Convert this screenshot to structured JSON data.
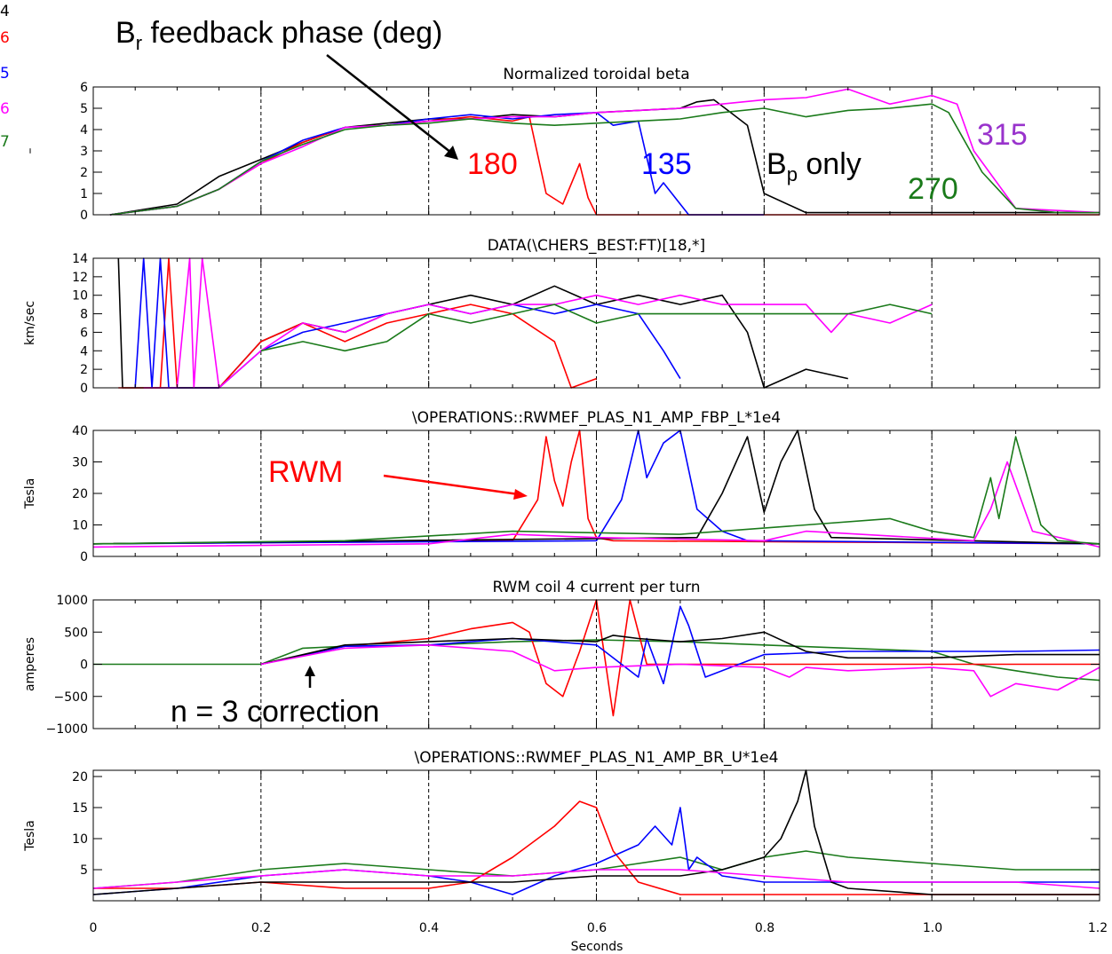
{
  "figure": {
    "x_label": "Seconds",
    "x_ticks": [
      "0",
      "0.2",
      "0.4",
      "0.6",
      "0.8",
      "1.0",
      "1.2"
    ],
    "legend_fragments": [
      "4",
      "6",
      "5",
      "6",
      "7"
    ]
  },
  "annotations": {
    "header_main": "B",
    "header_sub": "r",
    "header_rest": " feedback phase (deg)",
    "label_180": "180",
    "label_135": "135",
    "label_bp_main": "B",
    "label_bp_sub": "p",
    "label_bp_rest": " only",
    "label_270": "270",
    "label_315": "315",
    "label_rwm": "RWM",
    "label_n3": "n = 3 correction"
  },
  "colors": {
    "black": "#000000",
    "red": "#ff0000",
    "blue": "#0000ff",
    "magenta": "#ff00ff",
    "green": "#1a7a1a",
    "purple": "#9933cc"
  },
  "chart_data": [
    {
      "type": "line",
      "title": "Normalized toroidal beta",
      "ylabel": "–",
      "xlim": [
        0,
        1.2
      ],
      "ylim": [
        0,
        6
      ],
      "y_ticks": [
        "0",
        "1",
        "2",
        "3",
        "4",
        "5",
        "6"
      ],
      "series": [
        {
          "color": "black",
          "x": [
            0.02,
            0.1,
            0.15,
            0.2,
            0.25,
            0.3,
            0.35,
            0.4,
            0.45,
            0.5,
            0.55,
            0.6,
            0.65,
            0.7,
            0.72,
            0.74,
            0.76,
            0.78,
            0.8,
            0.85,
            1.2
          ],
          "y": [
            0,
            0.5,
            1.8,
            2.6,
            3.4,
            4.1,
            4.3,
            4.5,
            4.5,
            4.7,
            4.6,
            4.8,
            4.9,
            5.0,
            5.3,
            5.4,
            4.8,
            4.2,
            1.0,
            0.1,
            0.1
          ]
        },
        {
          "color": "red",
          "x": [
            0.02,
            0.1,
            0.15,
            0.2,
            0.25,
            0.3,
            0.35,
            0.4,
            0.45,
            0.5,
            0.52,
            0.54,
            0.56,
            0.58,
            0.59,
            0.6,
            1.2
          ],
          "y": [
            0,
            0.4,
            1.2,
            2.4,
            3.4,
            4.1,
            4.2,
            4.4,
            4.6,
            4.4,
            4.6,
            1.0,
            0.5,
            2.4,
            0.8,
            0,
            0
          ]
        },
        {
          "color": "blue",
          "x": [
            0.02,
            0.1,
            0.15,
            0.2,
            0.25,
            0.3,
            0.35,
            0.4,
            0.45,
            0.5,
            0.55,
            0.6,
            0.62,
            0.65,
            0.67,
            0.68,
            0.7,
            0.71,
            0.75,
            0.8
          ],
          "y": [
            0,
            0.4,
            1.2,
            2.5,
            3.5,
            4.1,
            4.2,
            4.5,
            4.7,
            4.5,
            4.7,
            4.8,
            4.2,
            4.4,
            1.0,
            1.5,
            0.5,
            0,
            0,
            0
          ]
        },
        {
          "color": "magenta",
          "x": [
            0.02,
            0.1,
            0.15,
            0.2,
            0.25,
            0.3,
            0.35,
            0.4,
            0.45,
            0.5,
            0.55,
            0.6,
            0.65,
            0.7,
            0.75,
            0.8,
            0.85,
            0.9,
            0.95,
            1.0,
            1.03,
            1.05,
            1.1,
            1.2
          ],
          "y": [
            0,
            0.4,
            1.2,
            2.4,
            3.2,
            4.1,
            4.2,
            4.4,
            4.5,
            4.6,
            4.6,
            4.8,
            4.9,
            5.0,
            5.2,
            5.4,
            5.5,
            5.9,
            5.2,
            5.6,
            5.2,
            3.0,
            0.3,
            0.1
          ]
        },
        {
          "color": "green",
          "x": [
            0.02,
            0.1,
            0.15,
            0.2,
            0.25,
            0.3,
            0.35,
            0.4,
            0.45,
            0.5,
            0.55,
            0.6,
            0.65,
            0.7,
            0.75,
            0.8,
            0.85,
            0.9,
            0.95,
            1.0,
            1.02,
            1.06,
            1.1,
            1.15,
            1.2
          ],
          "y": [
            0,
            0.4,
            1.2,
            2.5,
            3.3,
            4.0,
            4.2,
            4.3,
            4.5,
            4.3,
            4.2,
            4.3,
            4.4,
            4.5,
            4.8,
            5.0,
            4.6,
            4.9,
            5.0,
            5.2,
            4.8,
            2.0,
            0.3,
            0.1,
            0.1
          ]
        }
      ]
    },
    {
      "type": "line",
      "title": "DATA(\\CHERS_BEST:FT)[18,*]",
      "ylabel": "km/sec",
      "xlim": [
        0,
        1.2
      ],
      "ylim": [
        0,
        14
      ],
      "y_ticks": [
        "0",
        "2",
        "4",
        "6",
        "8",
        "10",
        "12",
        "14"
      ],
      "series": [
        {
          "color": "black",
          "x": [
            0.03,
            0.035,
            0.06,
            0.07,
            0.15,
            0.2,
            0.25,
            0.3,
            0.35,
            0.4,
            0.45,
            0.5,
            0.55,
            0.6,
            0.65,
            0.7,
            0.75,
            0.78,
            0.8,
            0.85,
            0.9
          ],
          "y": [
            14,
            0,
            0,
            0,
            0,
            5,
            7,
            6,
            8,
            9,
            10,
            9,
            11,
            9,
            10,
            9,
            10,
            6,
            0,
            2,
            1
          ]
        },
        {
          "color": "red",
          "x": [
            0.03,
            0.05,
            0.08,
            0.09,
            0.1,
            0.15,
            0.2,
            0.25,
            0.3,
            0.35,
            0.4,
            0.45,
            0.5,
            0.55,
            0.57,
            0.6
          ],
          "y": [
            0,
            0,
            0,
            14,
            0,
            0,
            5,
            7,
            5,
            7,
            8,
            9,
            8,
            5,
            0,
            1
          ]
        },
        {
          "color": "blue",
          "x": [
            0.05,
            0.06,
            0.07,
            0.08,
            0.09,
            0.1,
            0.15,
            0.2,
            0.25,
            0.3,
            0.35,
            0.4,
            0.45,
            0.5,
            0.55,
            0.6,
            0.65,
            0.68,
            0.7
          ],
          "y": [
            0,
            14,
            0,
            14,
            0,
            0,
            0,
            4,
            6,
            7,
            8,
            9,
            8,
            9,
            8,
            9,
            8,
            4,
            1
          ]
        },
        {
          "color": "magenta",
          "x": [
            0.06,
            0.1,
            0.115,
            0.12,
            0.13,
            0.15,
            0.2,
            0.25,
            0.3,
            0.35,
            0.4,
            0.45,
            0.5,
            0.55,
            0.6,
            0.65,
            0.7,
            0.75,
            0.8,
            0.85,
            0.88,
            0.9,
            0.95,
            1.0
          ],
          "y": [
            0,
            0,
            14,
            0,
            14,
            0,
            4,
            7,
            6,
            8,
            9,
            8,
            9,
            9,
            10,
            9,
            10,
            9,
            9,
            9,
            6,
            8,
            7,
            9
          ]
        },
        {
          "color": "green",
          "x": [
            0.2,
            0.25,
            0.3,
            0.35,
            0.4,
            0.45,
            0.5,
            0.55,
            0.6,
            0.65,
            0.7,
            0.75,
            0.8,
            0.85,
            0.9,
            0.95,
            1.0
          ],
          "y": [
            4,
            5,
            4,
            5,
            8,
            7,
            8,
            9,
            7,
            8,
            8,
            8,
            8,
            8,
            8,
            9,
            8
          ]
        }
      ]
    },
    {
      "type": "line",
      "title": "\\OPERATIONS::RWMEF_PLAS_N1_AMP_FBP_L*1e4",
      "ylabel": "Tesla",
      "xlim": [
        0,
        1.2
      ],
      "ylim": [
        0,
        40
      ],
      "y_ticks": [
        "0",
        "10",
        "20",
        "30",
        "40"
      ],
      "series": [
        {
          "color": "red",
          "x": [
            0,
            0.5,
            0.53,
            0.54,
            0.55,
            0.56,
            0.57,
            0.58,
            0.59,
            0.6,
            0.62,
            1.2
          ],
          "y": [
            4,
            5,
            18,
            38,
            24,
            16,
            30,
            40,
            12,
            6,
            5,
            4
          ]
        },
        {
          "color": "blue",
          "x": [
            0,
            0.6,
            0.63,
            0.65,
            0.66,
            0.68,
            0.7,
            0.72,
            0.75,
            0.78,
            1.2
          ],
          "y": [
            4,
            5,
            18,
            40,
            25,
            36,
            40,
            15,
            8,
            5,
            4
          ]
        },
        {
          "color": "black",
          "x": [
            0,
            0.72,
            0.75,
            0.78,
            0.8,
            0.82,
            0.84,
            0.86,
            0.88,
            1.2
          ],
          "y": [
            4,
            6,
            20,
            38,
            14,
            30,
            40,
            15,
            6,
            4
          ]
        },
        {
          "color": "magenta",
          "x": [
            0,
            0.4,
            0.5,
            0.6,
            0.8,
            0.85,
            1.05,
            1.07,
            1.09,
            1.12,
            1.2
          ],
          "y": [
            3,
            4,
            7,
            6,
            5,
            8,
            5,
            15,
            30,
            8,
            3
          ]
        },
        {
          "color": "green",
          "x": [
            0,
            0.3,
            0.5,
            0.7,
            0.85,
            0.95,
            1.0,
            1.05,
            1.07,
            1.08,
            1.1,
            1.13,
            1.15,
            1.2
          ],
          "y": [
            4,
            5,
            8,
            7,
            10,
            12,
            8,
            6,
            25,
            12,
            38,
            10,
            5,
            4
          ]
        }
      ]
    },
    {
      "type": "line",
      "title": "RWM coil 4 current per turn",
      "ylabel": "amperes",
      "xlim": [
        0,
        1.2
      ],
      "ylim": [
        -1000,
        1000
      ],
      "y_ticks": [
        "-1000",
        "-500",
        "0",
        "500",
        "1000"
      ],
      "series": [
        {
          "color": "green",
          "x": [
            0,
            0.2,
            0.25,
            0.3,
            0.4,
            0.5,
            0.6,
            0.7,
            0.8,
            0.9,
            1.0,
            1.05,
            1.1,
            1.15,
            1.2
          ],
          "y": [
            0,
            0,
            250,
            280,
            300,
            350,
            380,
            350,
            300,
            250,
            200,
            0,
            -100,
            -200,
            -250
          ]
        },
        {
          "color": "red",
          "x": [
            0.2,
            0.3,
            0.4,
            0.45,
            0.5,
            0.52,
            0.54,
            0.56,
            0.58,
            0.6,
            0.62,
            0.64,
            0.66,
            1.2
          ],
          "y": [
            0,
            280,
            400,
            550,
            650,
            500,
            -300,
            -500,
            200,
            1000,
            -800,
            1000,
            0,
            0
          ]
        },
        {
          "color": "blue",
          "x": [
            0.2,
            0.3,
            0.4,
            0.5,
            0.6,
            0.65,
            0.66,
            0.68,
            0.7,
            0.71,
            0.73,
            0.75,
            0.8,
            0.9,
            1.0,
            1.1,
            1.2
          ],
          "y": [
            0,
            280,
            300,
            400,
            300,
            -200,
            400,
            -300,
            900,
            600,
            -200,
            -100,
            150,
            200,
            200,
            200,
            220
          ]
        },
        {
          "color": "black",
          "x": [
            0.2,
            0.3,
            0.4,
            0.5,
            0.6,
            0.62,
            0.65,
            0.7,
            0.75,
            0.8,
            0.85,
            0.9,
            1.0,
            1.1,
            1.2
          ],
          "y": [
            0,
            300,
            350,
            400,
            350,
            450,
            400,
            350,
            400,
            500,
            200,
            100,
            100,
            150,
            150
          ]
        },
        {
          "color": "magenta",
          "x": [
            0.2,
            0.3,
            0.4,
            0.5,
            0.55,
            0.6,
            0.7,
            0.8,
            0.83,
            0.85,
            0.9,
            1.0,
            1.05,
            1.07,
            1.1,
            1.15,
            1.2
          ],
          "y": [
            0,
            250,
            300,
            200,
            -100,
            -50,
            0,
            -50,
            -200,
            -50,
            -100,
            -50,
            -100,
            -500,
            -300,
            -400,
            -50
          ]
        }
      ]
    },
    {
      "type": "line",
      "title": "\\OPERATIONS::RWMEF_PLAS_N1_AMP_BR_U*1e4",
      "ylabel": "Tesla",
      "xlim": [
        0,
        1.2
      ],
      "ylim": [
        0,
        21
      ],
      "y_ticks": [
        "5",
        "10",
        "15",
        "20"
      ],
      "series": [
        {
          "color": "green",
          "x": [
            0,
            0.1,
            0.2,
            0.3,
            0.4,
            0.5,
            0.6,
            0.7,
            0.75,
            0.8,
            0.85,
            0.9,
            1.0,
            1.1,
            1.2
          ],
          "y": [
            2,
            3,
            5,
            6,
            5,
            4,
            5,
            7,
            5,
            7,
            8,
            7,
            6,
            5,
            5
          ]
        },
        {
          "color": "red",
          "x": [
            0,
            0.1,
            0.2,
            0.3,
            0.4,
            0.45,
            0.5,
            0.55,
            0.58,
            0.6,
            0.62,
            0.65,
            0.7,
            0.8,
            1.2
          ],
          "y": [
            2,
            2,
            3,
            2,
            2,
            3,
            7,
            12,
            16,
            15,
            8,
            3,
            1,
            1,
            1
          ]
        },
        {
          "color": "blue",
          "x": [
            0,
            0.1,
            0.2,
            0.3,
            0.4,
            0.45,
            0.5,
            0.55,
            0.6,
            0.65,
            0.67,
            0.69,
            0.7,
            0.71,
            0.72,
            0.75,
            0.8,
            1.2
          ],
          "y": [
            1,
            2,
            4,
            5,
            4,
            3,
            1,
            4,
            6,
            9,
            12,
            9,
            15,
            5,
            7,
            4,
            3,
            3
          ]
        },
        {
          "color": "black",
          "x": [
            0,
            0.1,
            0.2,
            0.3,
            0.4,
            0.5,
            0.6,
            0.7,
            0.75,
            0.8,
            0.82,
            0.84,
            0.85,
            0.86,
            0.88,
            0.9,
            1.0,
            1.2
          ],
          "y": [
            1,
            2,
            3,
            3,
            3,
            3,
            4,
            4,
            5,
            7,
            10,
            16,
            21,
            12,
            3,
            2,
            1,
            1
          ]
        },
        {
          "color": "magenta",
          "x": [
            0,
            0.1,
            0.2,
            0.3,
            0.4,
            0.5,
            0.6,
            0.7,
            0.8,
            0.9,
            1.0,
            1.1,
            1.2
          ],
          "y": [
            2,
            3,
            4,
            5,
            4,
            4,
            5,
            5,
            4,
            3,
            3,
            3,
            2
          ]
        }
      ]
    }
  ]
}
